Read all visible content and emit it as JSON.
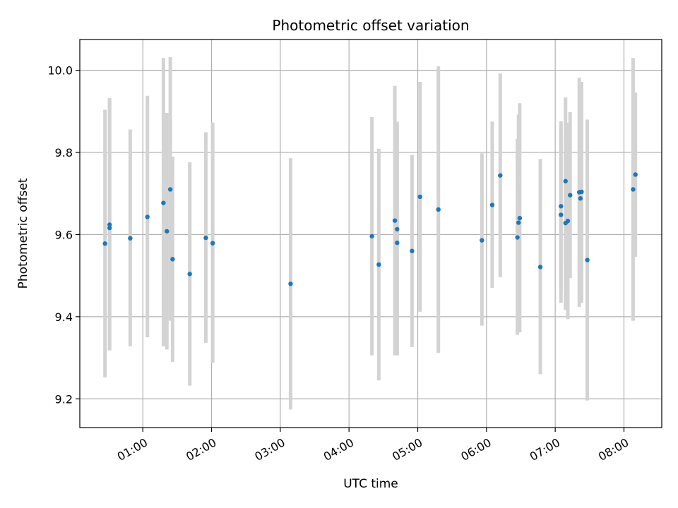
{
  "chart_data": {
    "type": "scatter",
    "title": "Photometric offset variation",
    "xlabel": "UTC time",
    "ylabel": "Photometric offset",
    "grid": true,
    "xlim": [
      "00:05",
      "08:33"
    ],
    "ylim": [
      9.13,
      10.075
    ],
    "xticks": [
      "01:00",
      "02:00",
      "03:00",
      "04:00",
      "05:00",
      "06:00",
      "07:00",
      "08:00"
    ],
    "yticks": [
      9.2,
      9.4,
      9.6,
      9.8,
      10.0
    ],
    "marker_color": "#1f77b4",
    "errorbar_color": "#d3d3d3",
    "points": [
      {
        "t": "00:27",
        "y": 9.578,
        "lo": 9.252,
        "hi": 9.904
      },
      {
        "t": "00:31",
        "y": 9.616,
        "lo": 9.318,
        "hi": 9.932
      },
      {
        "t": "00:31",
        "y": 9.624,
        "lo": 9.318,
        "hi": 9.932
      },
      {
        "t": "00:49",
        "y": 9.591,
        "lo": 9.328,
        "hi": 9.856
      },
      {
        "t": "01:04",
        "y": 9.643,
        "lo": 9.35,
        "hi": 9.938
      },
      {
        "t": "01:18",
        "y": 9.677,
        "lo": 9.328,
        "hi": 10.03
      },
      {
        "t": "01:21",
        "y": 9.608,
        "lo": 9.32,
        "hi": 9.896
      },
      {
        "t": "01:24",
        "y": 9.71,
        "lo": 9.39,
        "hi": 10.032
      },
      {
        "t": "01:26",
        "y": 9.54,
        "lo": 9.29,
        "hi": 9.79
      },
      {
        "t": "01:41",
        "y": 9.504,
        "lo": 9.232,
        "hi": 9.776
      },
      {
        "t": "01:55",
        "y": 9.592,
        "lo": 9.336,
        "hi": 9.849
      },
      {
        "t": "02:01",
        "y": 9.579,
        "lo": 9.288,
        "hi": 9.873
      },
      {
        "t": "03:09",
        "y": 9.48,
        "lo": 9.174,
        "hi": 9.786
      },
      {
        "t": "04:20",
        "y": 9.596,
        "lo": 9.306,
        "hi": 9.886
      },
      {
        "t": "04:26",
        "y": 9.527,
        "lo": 9.245,
        "hi": 9.809
      },
      {
        "t": "04:40",
        "y": 9.634,
        "lo": 9.306,
        "hi": 9.962
      },
      {
        "t": "04:42",
        "y": 9.613,
        "lo": 9.306,
        "hi": 9.875
      },
      {
        "t": "04:42",
        "y": 9.58,
        "lo": 9.306,
        "hi": 9.862
      },
      {
        "t": "04:55",
        "y": 9.56,
        "lo": 9.326,
        "hi": 9.794
      },
      {
        "t": "05:02",
        "y": 9.692,
        "lo": 9.412,
        "hi": 9.972
      },
      {
        "t": "05:18",
        "y": 9.661,
        "lo": 9.312,
        "hi": 10.01
      },
      {
        "t": "05:56",
        "y": 9.586,
        "lo": 9.378,
        "hi": 9.798
      },
      {
        "t": "06:05",
        "y": 9.672,
        "lo": 9.47,
        "hi": 9.875
      },
      {
        "t": "06:12",
        "y": 9.744,
        "lo": 9.496,
        "hi": 9.992
      },
      {
        "t": "06:27",
        "y": 9.593,
        "lo": 9.356,
        "hi": 9.833
      },
      {
        "t": "06:28",
        "y": 9.629,
        "lo": 9.366,
        "hi": 9.892
      },
      {
        "t": "06:29",
        "y": 9.64,
        "lo": 9.362,
        "hi": 9.92
      },
      {
        "t": "06:47",
        "y": 9.521,
        "lo": 9.26,
        "hi": 9.784
      },
      {
        "t": "07:05",
        "y": 9.669,
        "lo": 9.462,
        "hi": 9.876
      },
      {
        "t": "07:05",
        "y": 9.648,
        "lo": 9.434,
        "hi": 9.862
      },
      {
        "t": "07:09",
        "y": 9.73,
        "lo": 9.526,
        "hi": 9.934
      },
      {
        "t": "07:09",
        "y": 9.628,
        "lo": 9.416,
        "hi": 9.84
      },
      {
        "t": "07:11",
        "y": 9.633,
        "lo": 9.394,
        "hi": 9.872
      },
      {
        "t": "07:13",
        "y": 9.696,
        "lo": 9.494,
        "hi": 9.898
      },
      {
        "t": "07:21",
        "y": 9.703,
        "lo": 9.424,
        "hi": 9.982
      },
      {
        "t": "07:22",
        "y": 9.688,
        "lo": 9.434,
        "hi": 9.972
      },
      {
        "t": "07:23",
        "y": 9.704,
        "lo": 9.434,
        "hi": 9.972
      },
      {
        "t": "07:28",
        "y": 9.538,
        "lo": 9.196,
        "hi": 9.88
      },
      {
        "t": "08:08",
        "y": 9.71,
        "lo": 9.39,
        "hi": 10.03
      },
      {
        "t": "08:10",
        "y": 9.746,
        "lo": 9.546,
        "hi": 9.946
      }
    ]
  }
}
